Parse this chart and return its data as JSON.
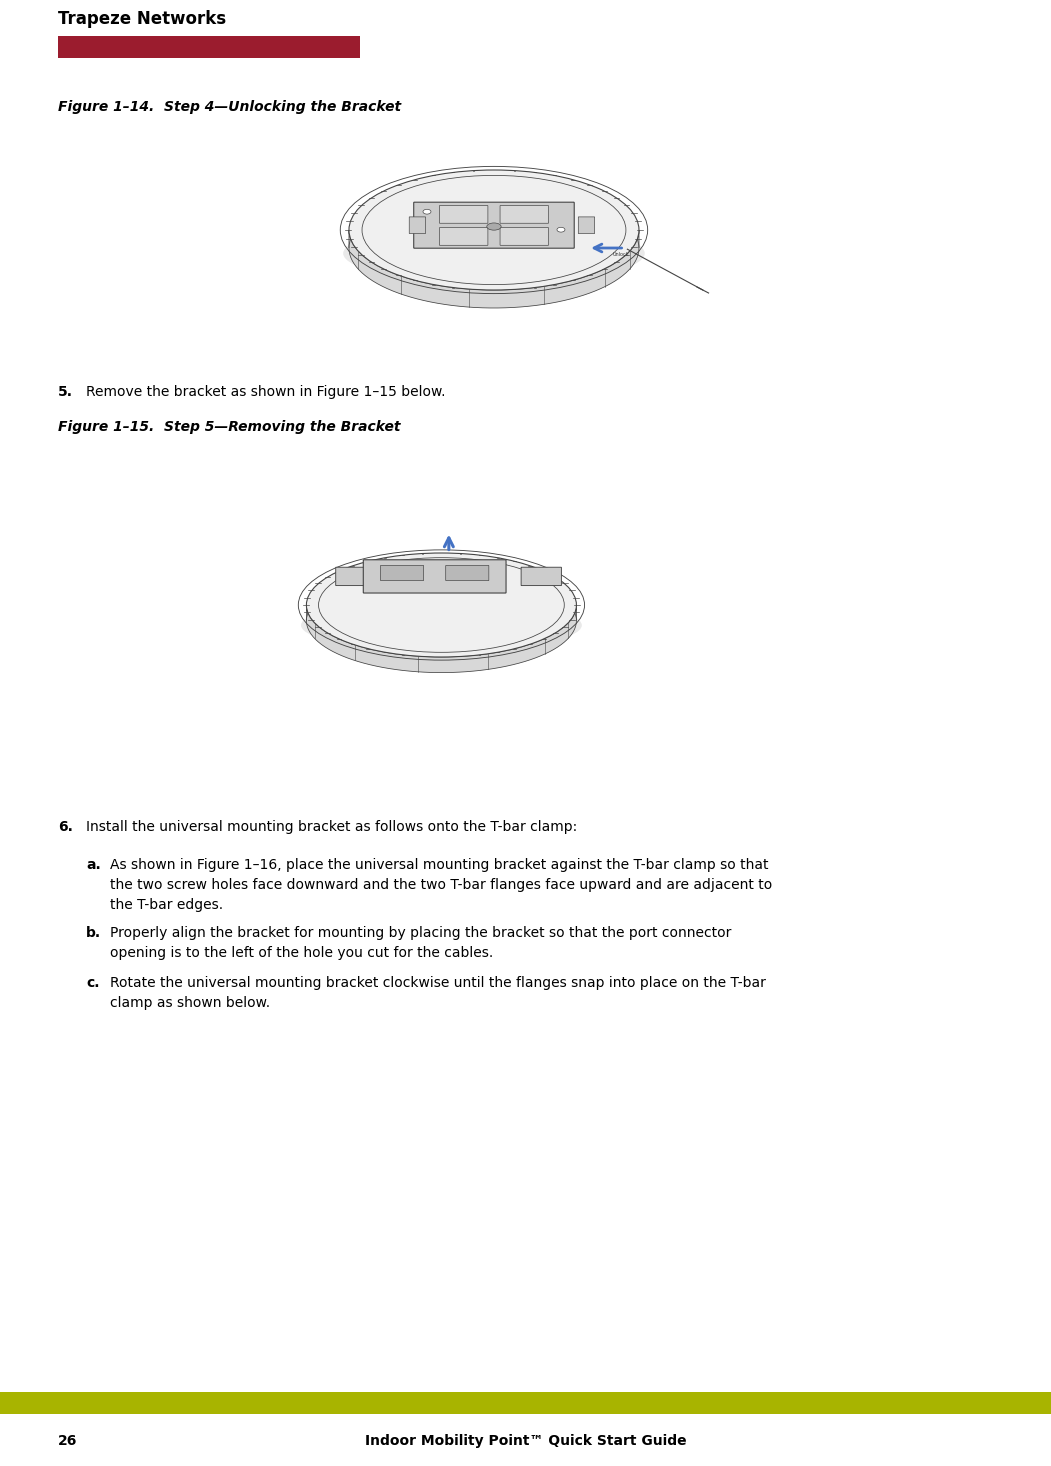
{
  "page_width": 10.51,
  "page_height": 14.66,
  "bg_color": "#ffffff",
  "header_text": "Trapeze Networks",
  "header_font_size": 12,
  "header_bar_color": "#9b1c2e",
  "footer_bar_color": "#a8b400",
  "footer_left_text": "26",
  "footer_right_text": "Indoor Mobility Point™ Quick Start Guide",
  "footer_font_size": 10,
  "fig_caption1": "Figure 1–14.  Step 4—Unlocking the Bracket",
  "fig_caption2": "Figure 1–15.  Step 5—Removing the Bracket",
  "caption_font_size": 10,
  "step5_text": "5.   Remove the bracket as shown in Figure 1–15 below.",
  "step5_bold": "5.",
  "step6_text": "6.   Install the universal mounting bracket as follows onto the T-bar clamp:",
  "step6a_label": "a.",
  "step6a_body": "As shown in Figure 1–16, place the universal mounting bracket against the T-bar clamp so that the two screw holes face downward and the two T-bar flanges face upward and are adjacent to the T-bar edges.",
  "step6b_label": "b.",
  "step6b_body": "Properly align the bracket for mounting by placing the bracket so that the port connector opening is to the left of the hole you cut for the cables.",
  "step6c_label": "c.",
  "step6c_body": "Rotate the universal mounting bracket clockwise until the flanges snap into place on the T-bar clamp as shown below.",
  "body_font_size": 10,
  "arrow_color": "#4472c4",
  "device_line_color": "#444444",
  "bracket_fill": "#cccccc",
  "body_fill": "#f0f0f0",
  "shadow_fill": "#d8d8d8"
}
